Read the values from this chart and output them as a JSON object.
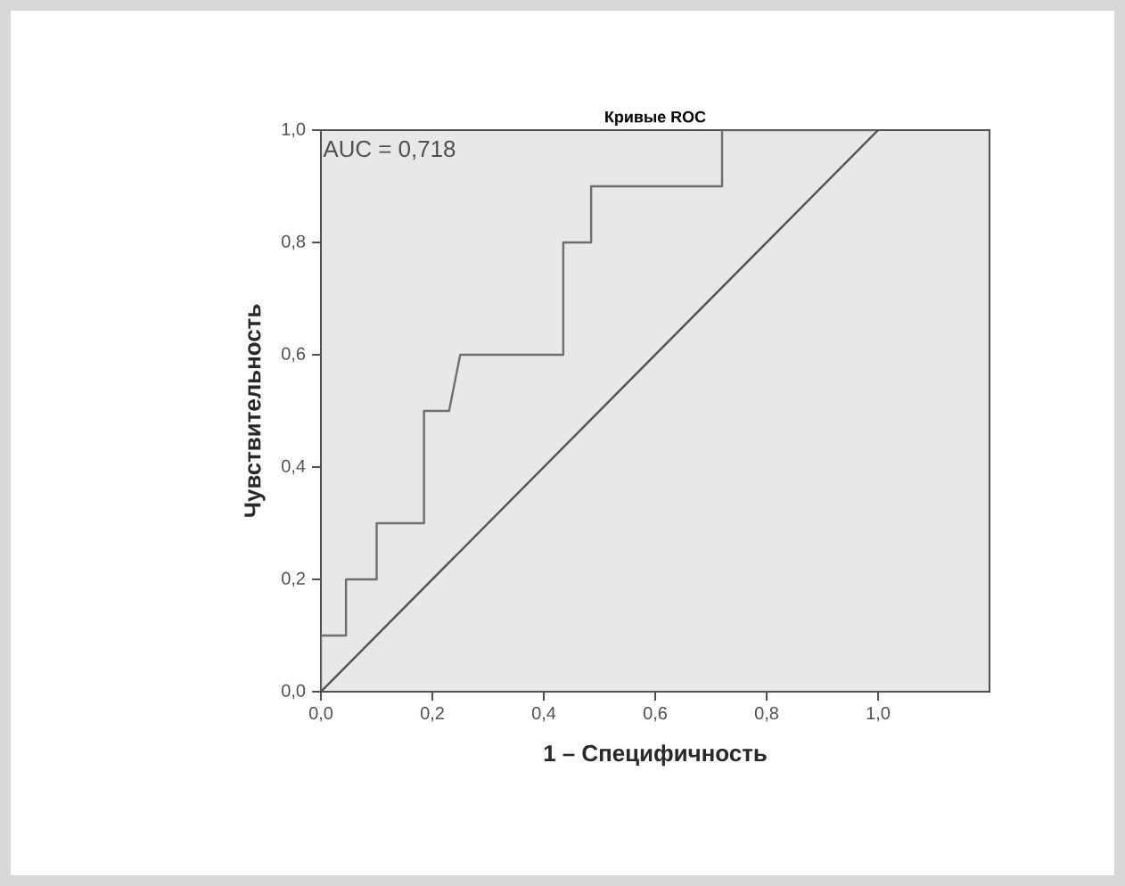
{
  "chart_data": {
    "type": "line",
    "title": "Кривые ROC",
    "xlabel": "1 – Специфичность",
    "ylabel": "Чувствительность",
    "annotations": [
      "AUC = 0,718"
    ],
    "series": [
      {
        "color": "#6e6e6e",
        "x": [
          0,
          0,
          0.045,
          0.045,
          0.1,
          0.1,
          0.185,
          0.185,
          0.23,
          0.25,
          0.435,
          0.435,
          0.485,
          0.485,
          0.72,
          0.72,
          1.0
        ],
        "values": [
          0,
          0.1,
          0.1,
          0.2,
          0.2,
          0.3,
          0.3,
          0.5,
          0.5,
          0.6,
          0.6,
          0.8,
          0.8,
          0.9,
          0.9,
          1.0,
          1.0
        ]
      },
      {
        "color": "#505050",
        "x": [
          0,
          1
        ],
        "values": [
          0,
          1
        ]
      }
    ],
    "xlim": [
      0,
      1.2
    ],
    "ylim": [
      0,
      1.0
    ],
    "xticks": [
      {
        "value": 0,
        "label": "0,0"
      },
      {
        "value": 0.2,
        "label": "0,2"
      },
      {
        "value": 0.4,
        "label": "0,4"
      },
      {
        "value": 0.6,
        "label": "0,6"
      },
      {
        "value": 0.8,
        "label": "0,8"
      },
      {
        "value": 1.0,
        "label": "1,0"
      }
    ],
    "yticks": [
      {
        "value": 0,
        "label": "0,0"
      },
      {
        "value": 0.2,
        "label": "0,2"
      },
      {
        "value": 0.4,
        "label": "0,4"
      },
      {
        "value": 0.6,
        "label": "0,6"
      },
      {
        "value": 0.8,
        "label": "0,8"
      },
      {
        "value": 1.0,
        "label": "1,0"
      }
    ],
    "marker": "none",
    "line_style": "solid"
  }
}
